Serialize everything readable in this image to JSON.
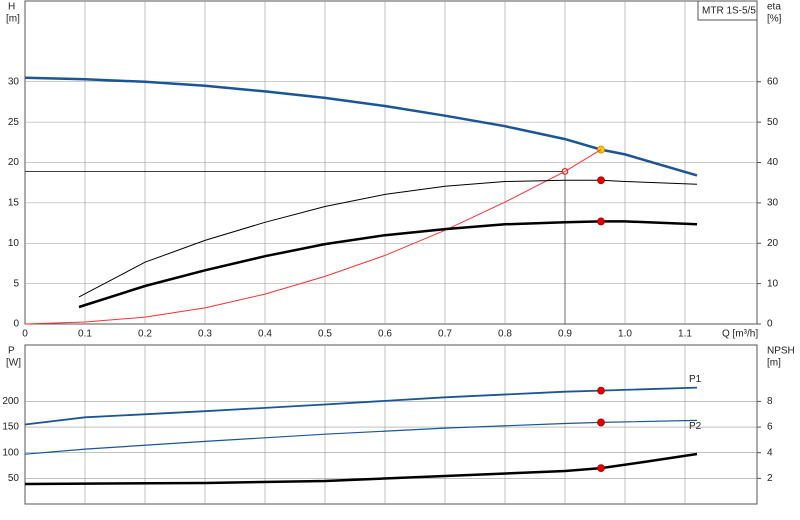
{
  "chart_data": [
    {
      "type": "line",
      "left_label": "H",
      "left_unit": "[m]",
      "right_label": "eta",
      "right_unit": "[%]",
      "box_label": "MTR 1S-5/5",
      "xlabel": "Q [m³/h]",
      "xlim": [
        0,
        1.22
      ],
      "xticks": [
        0,
        0.1,
        0.2,
        0.3,
        0.4,
        0.5,
        0.6,
        0.7,
        0.8,
        0.9,
        {
          "value": 1,
          "label": "1.0"
        },
        1.1
      ],
      "ylim": [
        0,
        40
      ],
      "yticks": [
        0,
        5,
        10,
        15,
        20,
        25,
        30
      ],
      "y2lim": [
        0,
        80
      ],
      "y2ticks": [
        0,
        10,
        20,
        30,
        40,
        50,
        60
      ],
      "grid": true,
      "operating_point": 0.96,
      "crosshair": {
        "x": 0.9,
        "y": 18.9,
        "color": "#e00000"
      },
      "series": [
        {
          "color": "#1a5598",
          "marker_color": "#ffcc00",
          "x": [
            0,
            0.1,
            0.2,
            0.3,
            0.4,
            0.5,
            0.6,
            0.7,
            0.8,
            0.9,
            0.96,
            1.0,
            1.12
          ],
          "values": [
            30.5,
            30.3,
            30,
            29.5,
            28.8,
            28,
            27,
            25.8,
            24.5,
            22.9,
            21.6,
            21,
            18.4
          ]
        },
        {
          "color": "#ff3030",
          "x": [
            0,
            0.1,
            0.2,
            0.3,
            0.4,
            0.5,
            0.6,
            0.7,
            0.8,
            0.9,
            0.96
          ],
          "values": [
            0,
            0.25,
            0.86,
            2,
            3.7,
            5.9,
            8.5,
            11.6,
            15.1,
            18.9,
            21.6
          ]
        },
        {
          "color": "#000000",
          "marker_color": "#e00000",
          "axis": "y2",
          "x": [
            0.09,
            0.2,
            0.3,
            0.4,
            0.5,
            0.6,
            0.7,
            0.8,
            0.9,
            0.96,
            1.0,
            1.12
          ],
          "values": [
            6.7,
            15.3,
            20.7,
            25.2,
            29.1,
            32.1,
            34.1,
            35.3,
            35.6,
            35.6,
            35.3,
            34.6
          ]
        },
        {
          "color": "#000000",
          "marker_color": "#e00000",
          "axis": "y2",
          "x": [
            0.09,
            0.2,
            0.3,
            0.4,
            0.5,
            0.6,
            0.7,
            0.8,
            0.9,
            0.96,
            1.0,
            1.12
          ],
          "values": [
            4.2,
            9.4,
            13.3,
            16.8,
            19.8,
            22,
            23.5,
            24.7,
            25.2,
            25.4,
            25.4,
            24.7
          ]
        }
      ]
    },
    {
      "type": "line",
      "left_label": "P",
      "left_unit": "[W]",
      "right_label": "NPSH",
      "right_unit": "[m]",
      "xlim": [
        0,
        1.22
      ],
      "xticks": [
        0,
        0.1,
        0.2,
        0.3,
        0.4,
        0.5,
        0.6,
        0.7,
        0.8,
        0.9,
        1,
        1.1
      ],
      "x_tick_labels": false,
      "ylim": [
        0,
        310
      ],
      "yticks": [
        50,
        100,
        150,
        200
      ],
      "y2lim": [
        0,
        12.4
      ],
      "y2ticks": [
        2,
        4,
        6,
        8
      ],
      "grid": true,
      "operating_point": 0.96,
      "series": [
        {
          "name": "P1",
          "color": "#1a5598",
          "marker_color": "#e00000",
          "x": [
            0,
            0.1,
            0.3,
            0.5,
            0.7,
            0.9,
            0.96,
            1.12
          ],
          "values": [
            155,
            169,
            181,
            194,
            208,
            219,
            221,
            227
          ]
        },
        {
          "name": "P2",
          "color": "#1a5598",
          "marker_color": "#e00000",
          "x": [
            0,
            0.1,
            0.3,
            0.5,
            0.7,
            0.9,
            0.96,
            1.12
          ],
          "values": [
            97,
            107,
            122,
            136,
            148,
            157,
            159,
            163
          ]
        },
        {
          "color": "#000000",
          "marker_color": "#e00000",
          "axis": "y2",
          "x": [
            0,
            0.3,
            0.5,
            0.7,
            0.9,
            0.96,
            1.03,
            1.12
          ],
          "values": [
            1.56,
            1.64,
            1.79,
            2.18,
            2.57,
            2.8,
            3.27,
            3.9
          ]
        }
      ]
    }
  ]
}
